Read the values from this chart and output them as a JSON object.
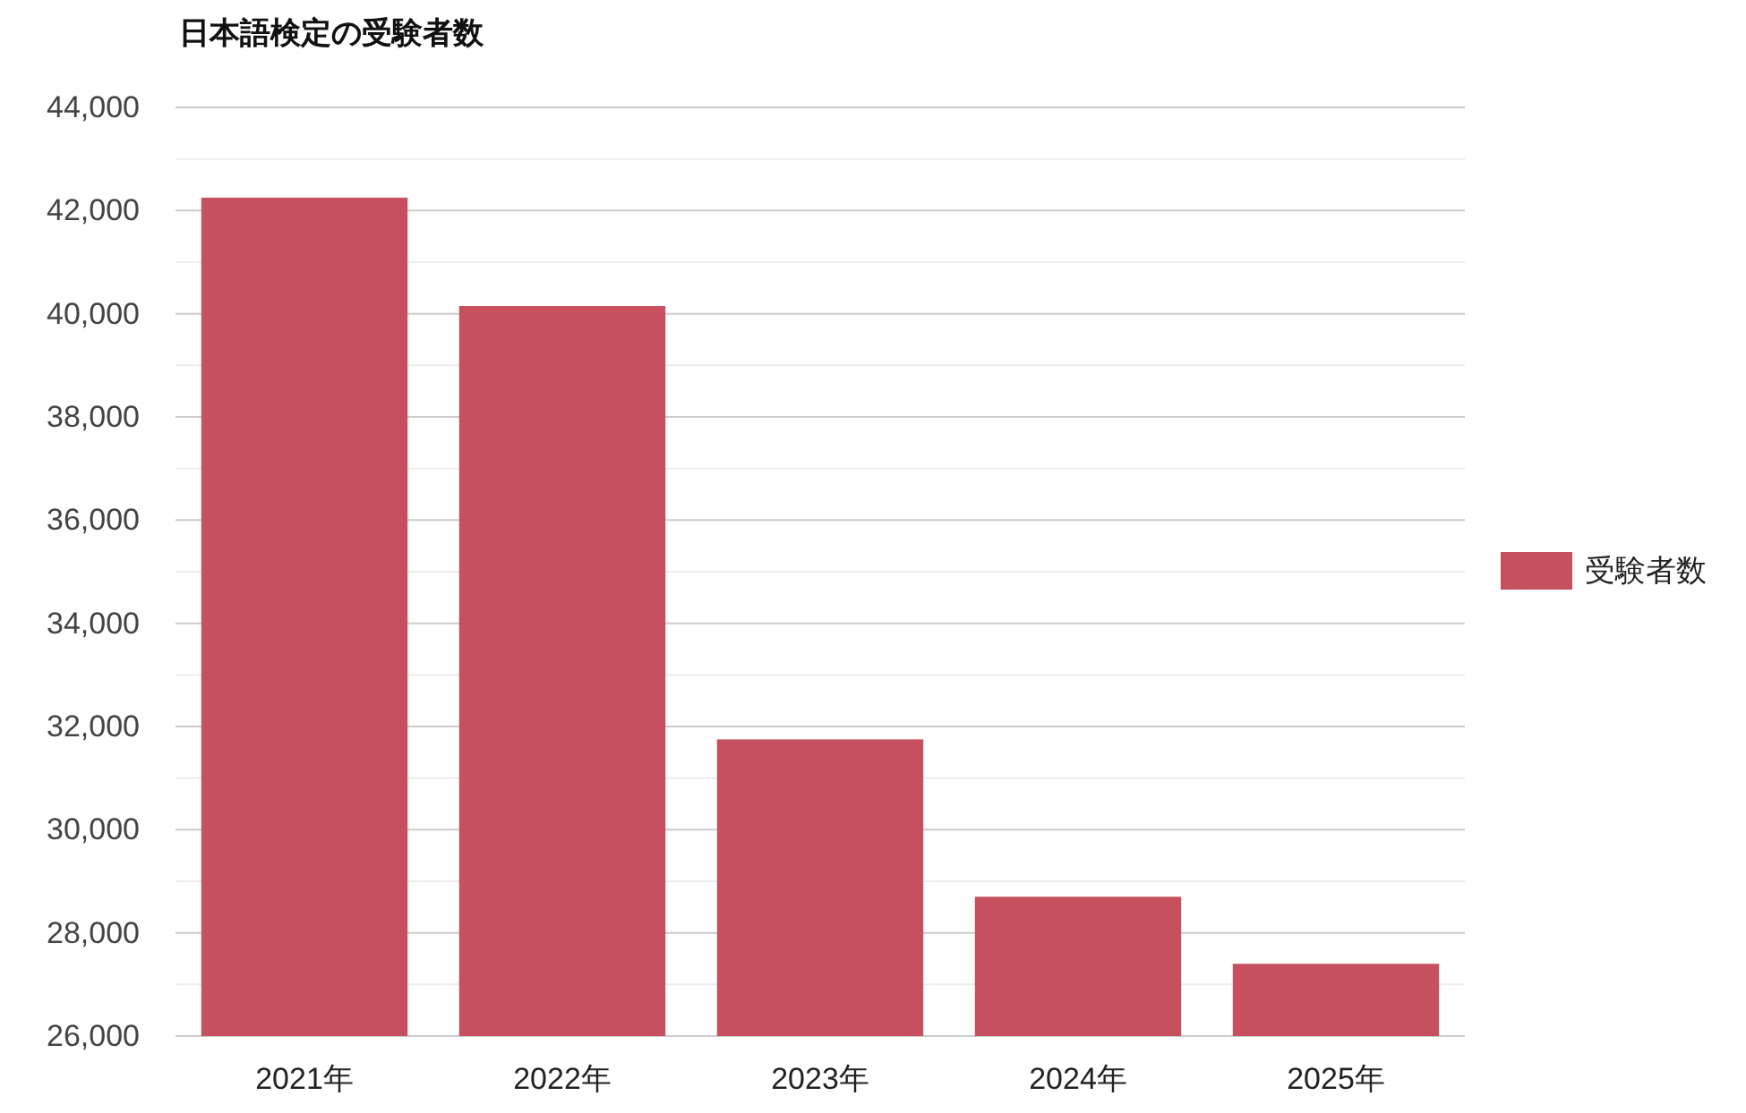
{
  "chart_data": {
    "type": "bar",
    "title": "日本語検定の受験者数",
    "categories": [
      "2021年",
      "2022年",
      "2023年",
      "2024年",
      "2025年"
    ],
    "series": [
      {
        "name": "受験者数",
        "color": "#c7505e",
        "values": [
          42250,
          40150,
          31750,
          28700,
          27400
        ]
      }
    ],
    "ylim": [
      26000,
      44000
    ],
    "yticks": [
      {
        "value": 26000,
        "label": "26,000"
      },
      {
        "value": 28000,
        "label": "28,000"
      },
      {
        "value": 30000,
        "label": "30,000"
      },
      {
        "value": 32000,
        "label": "32,000"
      },
      {
        "value": 34000,
        "label": "34,000"
      },
      {
        "value": 36000,
        "label": "36,000"
      },
      {
        "value": 38000,
        "label": "38,000"
      },
      {
        "value": 40000,
        "label": "40,000"
      },
      {
        "value": 42000,
        "label": "42,000"
      },
      {
        "value": 44000,
        "label": "44,000"
      }
    ],
    "grid": true,
    "legend": "right"
  }
}
